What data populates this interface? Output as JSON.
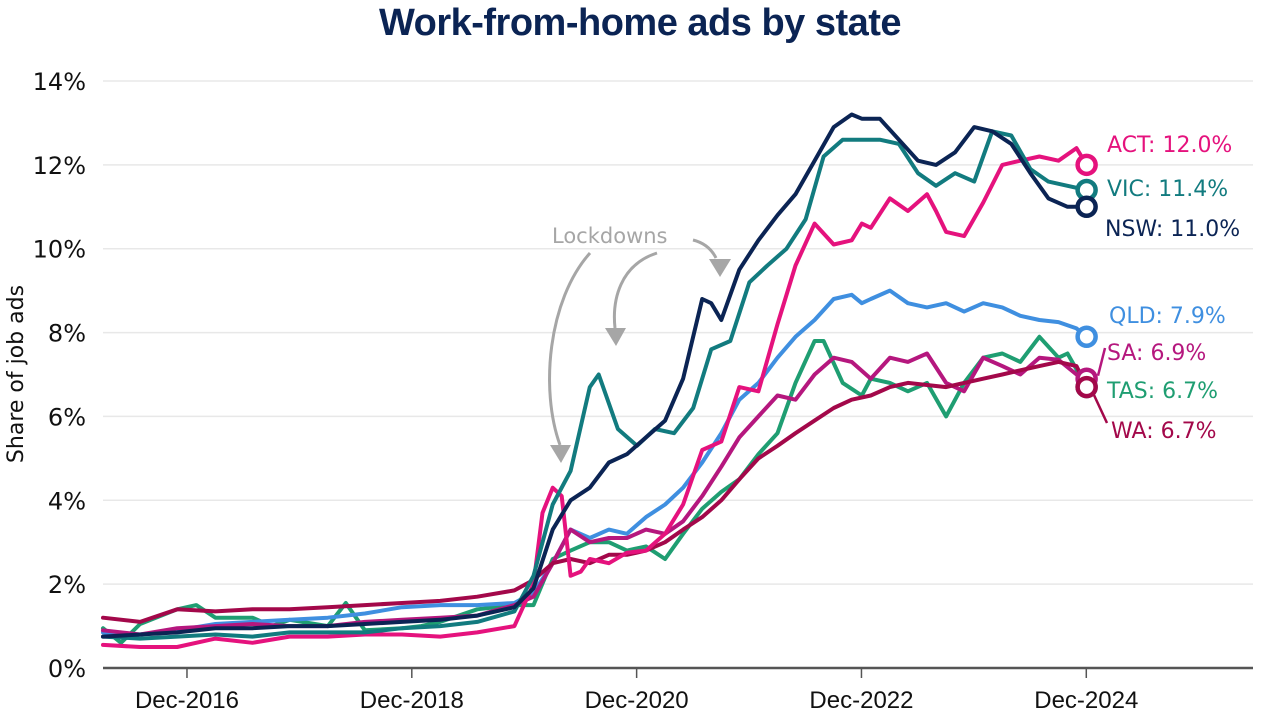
{
  "chart_data": {
    "type": "line",
    "title": "Work-from-home ads by state",
    "xlabel": "",
    "ylabel": "Share of job ads",
    "ylim": [
      0,
      14
    ],
    "xlim": [
      2016.17,
      2026.4
    ],
    "y_ticks": [
      0,
      2,
      4,
      6,
      8,
      10,
      12,
      14
    ],
    "y_tick_labels": [
      "0%",
      "2%",
      "4%",
      "6%",
      "8%",
      "10%",
      "12%",
      "14%"
    ],
    "x_ticks": [
      2016.917,
      2018.917,
      2020.917,
      2022.917,
      2024.917
    ],
    "x_tick_labels": [
      "Dec-2016",
      "Dec-2018",
      "Dec-2020",
      "Dec-2022",
      "Dec-2024"
    ],
    "grid": "horizontal",
    "legend": "end-labels",
    "annotation": {
      "text": "Lockdowns",
      "targets": [
        "Mar-2020",
        "Aug-2020",
        "Jul-2021"
      ]
    },
    "series": [
      {
        "name": "ACT",
        "label": "ACT: 12.0%",
        "color": "#e5127d",
        "end_value": 12.0,
        "x": [
          2016.17,
          2016.5,
          2016.83,
          2017.17,
          2017.5,
          2017.83,
          2018.17,
          2018.5,
          2018.83,
          2019.17,
          2019.5,
          2019.83,
          2020.0,
          2020.08,
          2020.17,
          2020.25,
          2020.33,
          2020.42,
          2020.5,
          2020.67,
          2020.83,
          2021.0,
          2021.17,
          2021.33,
          2021.5,
          2021.67,
          2021.83,
          2022.0,
          2022.17,
          2022.33,
          2022.5,
          2022.67,
          2022.83,
          2022.92,
          2023.0,
          2023.17,
          2023.33,
          2023.5,
          2023.58,
          2023.67,
          2023.83,
          2024.0,
          2024.17,
          2024.33,
          2024.5,
          2024.67,
          2024.83,
          2024.92
        ],
        "y": [
          0.55,
          0.5,
          0.5,
          0.7,
          0.6,
          0.75,
          0.75,
          0.8,
          0.8,
          0.75,
          0.85,
          1.0,
          2.0,
          3.7,
          4.3,
          4.1,
          2.2,
          2.3,
          2.6,
          2.5,
          2.75,
          2.8,
          3.2,
          3.9,
          5.2,
          5.4,
          6.7,
          6.6,
          8.2,
          9.6,
          10.6,
          10.1,
          10.2,
          10.6,
          10.5,
          11.2,
          10.9,
          11.3,
          10.9,
          10.4,
          10.3,
          11.1,
          12.0,
          12.1,
          12.2,
          12.1,
          12.4,
          12.0
        ]
      },
      {
        "name": "VIC",
        "label": "VIC: 11.4%",
        "color": "#127b7f",
        "end_value": 11.4,
        "x": [
          2016.17,
          2016.5,
          2016.83,
          2017.17,
          2017.5,
          2017.83,
          2018.17,
          2018.5,
          2018.83,
          2019.17,
          2019.5,
          2019.83,
          2020.0,
          2020.17,
          2020.33,
          2020.5,
          2020.58,
          2020.75,
          2020.92,
          2021.08,
          2021.25,
          2021.42,
          2021.58,
          2021.75,
          2021.92,
          2022.08,
          2022.25,
          2022.42,
          2022.58,
          2022.75,
          2022.92,
          2023.08,
          2023.25,
          2023.42,
          2023.58,
          2023.75,
          2023.92,
          2024.08,
          2024.25,
          2024.42,
          2024.58,
          2024.75,
          2024.92
        ],
        "y": [
          0.75,
          0.7,
          0.75,
          0.8,
          0.75,
          0.85,
          0.85,
          0.85,
          0.95,
          1.0,
          1.1,
          1.35,
          2.2,
          3.9,
          4.7,
          6.7,
          7.0,
          5.7,
          5.3,
          5.7,
          5.6,
          6.2,
          7.6,
          7.8,
          9.2,
          9.6,
          10.0,
          10.7,
          12.2,
          12.6,
          12.6,
          12.6,
          12.5,
          11.8,
          11.5,
          11.8,
          11.6,
          12.8,
          12.7,
          11.9,
          11.6,
          11.5,
          11.4
        ]
      },
      {
        "name": "NSW",
        "label": "NSW: 11.0%",
        "color": "#0b2454",
        "end_value": 11.0,
        "x": [
          2016.17,
          2016.5,
          2016.83,
          2017.17,
          2017.5,
          2017.83,
          2018.17,
          2018.5,
          2018.83,
          2019.17,
          2019.5,
          2019.83,
          2020.0,
          2020.17,
          2020.33,
          2020.5,
          2020.67,
          2020.83,
          2021.0,
          2021.17,
          2021.33,
          2021.5,
          2021.58,
          2021.67,
          2021.83,
          2022.0,
          2022.17,
          2022.33,
          2022.5,
          2022.67,
          2022.83,
          2022.92,
          2023.08,
          2023.25,
          2023.42,
          2023.58,
          2023.75,
          2023.92,
          2024.08,
          2024.25,
          2024.42,
          2024.58,
          2024.75,
          2024.92
        ],
        "y": [
          0.75,
          0.8,
          0.85,
          0.95,
          0.95,
          1.0,
          1.0,
          1.05,
          1.1,
          1.15,
          1.25,
          1.45,
          1.9,
          3.3,
          4.0,
          4.3,
          4.9,
          5.1,
          5.5,
          5.9,
          6.9,
          8.8,
          8.7,
          8.3,
          9.5,
          10.2,
          10.8,
          11.3,
          12.1,
          12.9,
          13.2,
          13.1,
          13.1,
          12.6,
          12.1,
          12.0,
          12.3,
          12.9,
          12.8,
          12.5,
          11.8,
          11.2,
          11.0,
          11.0
        ]
      },
      {
        "name": "QLD",
        "label": "QLD: 7.9%",
        "color": "#3f8fe0",
        "end_value": 7.9,
        "x": [
          2016.17,
          2016.5,
          2016.83,
          2017.17,
          2017.5,
          2017.83,
          2018.17,
          2018.5,
          2018.83,
          2019.17,
          2019.5,
          2019.83,
          2020.0,
          2020.17,
          2020.33,
          2020.5,
          2020.67,
          2020.83,
          2021.0,
          2021.17,
          2021.33,
          2021.5,
          2021.67,
          2021.83,
          2022.0,
          2022.17,
          2022.33,
          2022.5,
          2022.67,
          2022.83,
          2022.92,
          2023.0,
          2023.17,
          2023.33,
          2023.5,
          2023.67,
          2023.83,
          2024.0,
          2024.17,
          2024.33,
          2024.5,
          2024.67,
          2024.83,
          2024.92
        ],
        "y": [
          0.85,
          0.8,
          0.9,
          1.05,
          1.1,
          1.15,
          1.2,
          1.3,
          1.45,
          1.5,
          1.5,
          1.55,
          1.8,
          2.5,
          3.3,
          3.1,
          3.3,
          3.2,
          3.6,
          3.9,
          4.3,
          4.9,
          5.6,
          6.4,
          6.8,
          7.4,
          7.9,
          8.3,
          8.8,
          8.9,
          8.7,
          8.8,
          9.0,
          8.7,
          8.6,
          8.7,
          8.5,
          8.7,
          8.6,
          8.4,
          8.3,
          8.25,
          8.1,
          7.9
        ]
      },
      {
        "name": "SA",
        "label": "SA: 6.9%",
        "color": "#b5177e",
        "end_value": 6.9,
        "x": [
          2016.17,
          2016.5,
          2016.83,
          2017.17,
          2017.5,
          2017.83,
          2018.17,
          2018.5,
          2018.83,
          2019.17,
          2019.5,
          2019.83,
          2020.0,
          2020.17,
          2020.33,
          2020.5,
          2020.67,
          2020.83,
          2021.0,
          2021.17,
          2021.33,
          2021.5,
          2021.67,
          2021.83,
          2022.0,
          2022.17,
          2022.33,
          2022.5,
          2022.67,
          2022.83,
          2023.0,
          2023.17,
          2023.33,
          2023.5,
          2023.67,
          2023.83,
          2024.0,
          2024.17,
          2024.33,
          2024.5,
          2024.67,
          2024.83,
          2024.92
        ],
        "y": [
          0.9,
          0.8,
          0.95,
          1.0,
          1.05,
          1.0,
          1.0,
          1.1,
          1.15,
          1.2,
          1.25,
          1.5,
          1.7,
          2.5,
          3.3,
          3.0,
          3.1,
          3.1,
          3.3,
          3.2,
          3.5,
          4.1,
          4.8,
          5.5,
          6.0,
          6.5,
          6.4,
          7.0,
          7.4,
          7.3,
          6.9,
          7.4,
          7.3,
          7.5,
          6.8,
          6.6,
          7.4,
          7.2,
          7.0,
          7.4,
          7.35,
          7.0,
          6.9
        ]
      },
      {
        "name": "TAS",
        "label": "TAS: 6.7%",
        "color": "#1f9e72",
        "end_value": 6.7,
        "x": [
          2016.17,
          2016.33,
          2016.5,
          2016.83,
          2017.0,
          2017.17,
          2017.5,
          2017.67,
          2017.83,
          2018.17,
          2018.33,
          2018.5,
          2018.83,
          2019.0,
          2019.17,
          2019.5,
          2019.83,
          2020.0,
          2020.17,
          2020.33,
          2020.5,
          2020.67,
          2020.83,
          2021.0,
          2021.17,
          2021.33,
          2021.5,
          2021.67,
          2021.83,
          2022.0,
          2022.17,
          2022.33,
          2022.5,
          2022.58,
          2022.75,
          2022.92,
          2023.0,
          2023.17,
          2023.33,
          2023.5,
          2023.67,
          2023.83,
          2024.0,
          2024.17,
          2024.33,
          2024.5,
          2024.67,
          2024.75,
          2024.92
        ],
        "y": [
          0.95,
          0.6,
          1.05,
          1.4,
          1.5,
          1.2,
          1.2,
          1.0,
          1.15,
          1.0,
          1.55,
          0.9,
          0.95,
          1.0,
          1.1,
          1.4,
          1.5,
          1.5,
          2.6,
          2.8,
          3.0,
          3.0,
          2.8,
          2.9,
          2.6,
          3.2,
          3.8,
          4.2,
          4.5,
          5.1,
          5.6,
          6.8,
          7.8,
          7.8,
          6.8,
          6.5,
          6.9,
          6.8,
          6.6,
          6.8,
          6.0,
          6.8,
          7.4,
          7.5,
          7.3,
          7.9,
          7.4,
          7.5,
          6.7
        ]
      },
      {
        "name": "WA",
        "label": "WA: 6.7%",
        "color": "#a3084a",
        "end_value": 6.7,
        "x": [
          2016.17,
          2016.5,
          2016.83,
          2017.17,
          2017.5,
          2017.83,
          2018.17,
          2018.5,
          2018.83,
          2019.17,
          2019.5,
          2019.83,
          2020.0,
          2020.17,
          2020.33,
          2020.5,
          2020.67,
          2020.83,
          2021.0,
          2021.17,
          2021.33,
          2021.5,
          2021.67,
          2021.83,
          2022.0,
          2022.17,
          2022.33,
          2022.5,
          2022.67,
          2022.83,
          2023.0,
          2023.17,
          2023.33,
          2023.5,
          2023.67,
          2023.83,
          2024.0,
          2024.17,
          2024.33,
          2024.5,
          2024.67,
          2024.83,
          2024.92
        ],
        "y": [
          1.2,
          1.1,
          1.4,
          1.35,
          1.4,
          1.4,
          1.45,
          1.5,
          1.55,
          1.6,
          1.7,
          1.85,
          2.1,
          2.5,
          2.6,
          2.5,
          2.7,
          2.7,
          2.8,
          3.0,
          3.3,
          3.6,
          4.0,
          4.5,
          5.0,
          5.3,
          5.6,
          5.9,
          6.2,
          6.4,
          6.5,
          6.7,
          6.8,
          6.75,
          6.7,
          6.8,
          6.9,
          7.0,
          7.1,
          7.2,
          7.3,
          7.2,
          6.7
        ]
      }
    ]
  }
}
